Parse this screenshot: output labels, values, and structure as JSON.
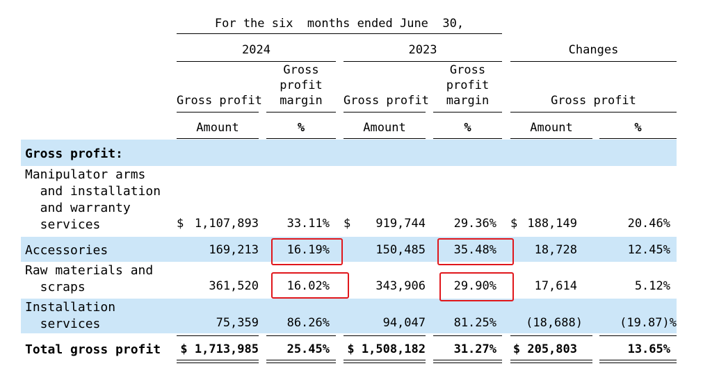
{
  "header": {
    "period": "For the six  months ended June  30,",
    "year_2024": "2024",
    "year_2023": "2023",
    "changes": "Changes",
    "col_gross_profit": "Gross profit",
    "col_gross_profit_margin": "Gross\nprofit\nmargin",
    "sub_amount": "Amount",
    "sub_pct": "%"
  },
  "section_title": "Gross profit:",
  "rows": [
    {
      "label": "Manipulator arms\n  and installation\n  and warranty\n  services",
      "gp2024_dollar": "$",
      "gp2024": "1,107,893",
      "m2024": "33.11%",
      "gp2023_dollar": "$",
      "gp2023": "919,744",
      "m2023": "29.36%",
      "chg_dollar": "$",
      "chg_amt": "188,149",
      "chg_pct": "20.46%"
    },
    {
      "label": "Accessories",
      "gp2024": "169,213",
      "m2024": "16.19%",
      "gp2023": "150,485",
      "m2023": "35.48%",
      "chg_amt": "18,728",
      "chg_pct": "12.45%"
    },
    {
      "label": "Raw materials and\n  scraps",
      "gp2024": "361,520",
      "m2024": "16.02%",
      "gp2023": "343,906",
      "m2023": "29.90%",
      "chg_amt": "17,614",
      "chg_pct": "5.12%"
    },
    {
      "label": "Installation\n  services",
      "gp2024": "75,359",
      "m2024": "86.26%",
      "gp2023": "94,047",
      "m2023": "81.25%",
      "chg_amt": "(18,688)",
      "chg_pct": "(19.87)%"
    }
  ],
  "total": {
    "label": "Total gross profit",
    "gp2024": "$ 1,713,985",
    "m2024": "25.45%",
    "gp2023": "$ 1,508,182",
    "m2023": "31.27%",
    "chg_amt": "$ 205,803",
    "chg_pct": "13.65%"
  },
  "colors": {
    "band": "#cce6f8",
    "highlight_box": "#e0161b"
  }
}
